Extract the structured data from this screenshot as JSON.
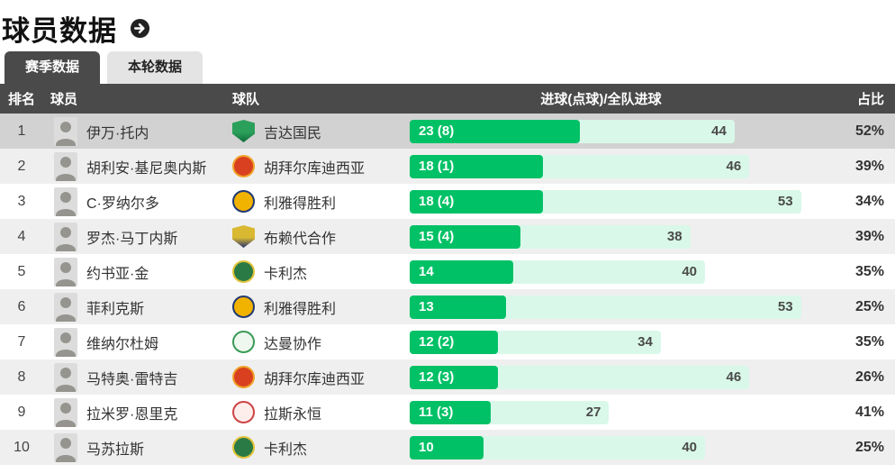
{
  "page": {
    "title": "球员数据"
  },
  "tabs": [
    {
      "label": "赛季数据",
      "active": true
    },
    {
      "label": "本轮数据",
      "active": false
    }
  ],
  "table": {
    "headers": {
      "rank": "排名",
      "player": "球员",
      "team": "球队",
      "goals": "进球(点球)/全队进球",
      "share": "占比"
    },
    "rows": [
      {
        "rank": "1",
        "player": "伊万·托内",
        "team": "吉达国民",
        "goals": 23,
        "goals_label": "23 (8)",
        "team_total": 44,
        "share": "52%",
        "highlighted": true,
        "logo": {
          "shape": "shield",
          "c1": "#2ba05a",
          "c2": "#0f6b3a"
        }
      },
      {
        "rank": "2",
        "player": "胡利安·基尼奥内斯",
        "team": "胡拜尔库迪西亚",
        "goals": 18,
        "goals_label": "18 (1)",
        "team_total": 46,
        "share": "39%",
        "logo": {
          "shape": "circle",
          "c1": "#d8401f",
          "c2": "#f0a32a"
        }
      },
      {
        "rank": "3",
        "player": "C·罗纳尔多",
        "team": "利雅得胜利",
        "goals": 18,
        "goals_label": "18 (4)",
        "team_total": 53,
        "share": "34%",
        "logo": {
          "shape": "circle",
          "c1": "#f2b200",
          "c2": "#223a73"
        }
      },
      {
        "rank": "4",
        "player": "罗杰·马丁内斯",
        "team": "布赖代合作",
        "goals": 15,
        "goals_label": "15 (4)",
        "team_total": 38,
        "share": "39%",
        "logo": {
          "shape": "shield",
          "c1": "#d9b832",
          "c2": "#23306e"
        }
      },
      {
        "rank": "5",
        "player": "约书亚·金",
        "team": "卡利杰",
        "goals": 14,
        "goals_label": "14",
        "team_total": 40,
        "share": "35%",
        "logo": {
          "shape": "circle",
          "c1": "#2a7a45",
          "c2": "#e0c23a"
        }
      },
      {
        "rank": "6",
        "player": "菲利克斯",
        "team": "利雅得胜利",
        "goals": 13,
        "goals_label": "13",
        "team_total": 53,
        "share": "25%",
        "logo": {
          "shape": "circle",
          "c1": "#f2b200",
          "c2": "#223a73"
        }
      },
      {
        "rank": "7",
        "player": "维纳尔杜姆",
        "team": "达曼协作",
        "goals": 12,
        "goals_label": "12 (2)",
        "team_total": 34,
        "share": "35%",
        "logo": {
          "shape": "circle",
          "c1": "#eef8ee",
          "c2": "#3a9a57"
        }
      },
      {
        "rank": "8",
        "player": "马特奥·雷特吉",
        "team": "胡拜尔库迪西亚",
        "goals": 12,
        "goals_label": "12 (3)",
        "team_total": 46,
        "share": "26%",
        "logo": {
          "shape": "circle",
          "c1": "#d8401f",
          "c2": "#f0a32a"
        }
      },
      {
        "rank": "9",
        "player": "拉米罗·恩里克",
        "team": "拉斯永恒",
        "goals": 11,
        "goals_label": "11 (3)",
        "team_total": 27,
        "share": "41%",
        "logo": {
          "shape": "circle",
          "c1": "#fdeeec",
          "c2": "#cc4444"
        }
      },
      {
        "rank": "10",
        "player": "马苏拉斯",
        "team": "卡利杰",
        "goals": 10,
        "goals_label": "10",
        "team_total": 40,
        "share": "25%",
        "logo": {
          "shape": "circle",
          "c1": "#2a7a45",
          "c2": "#e0c23a"
        }
      }
    ]
  },
  "colors": {
    "bar_fill": "#00c166",
    "bar_track": "#d9f8e9",
    "header_bg": "#4a4a4a",
    "highlight_row": "#d2d2d2",
    "stripe_row": "#efefef"
  }
}
